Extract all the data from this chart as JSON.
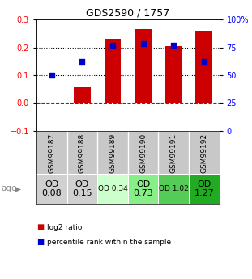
{
  "title": "GDS2590 / 1757",
  "samples": [
    "GSM99187",
    "GSM99188",
    "GSM99189",
    "GSM99190",
    "GSM99191",
    "GSM99192"
  ],
  "log2_ratios": [
    0.0,
    0.055,
    0.23,
    0.265,
    0.205,
    0.26
  ],
  "percentile_ranks_pct": [
    50,
    62,
    77,
    78,
    77,
    62
  ],
  "ylim_left": [
    -0.1,
    0.3
  ],
  "ylim_right": [
    0,
    100
  ],
  "yticks_left": [
    -0.1,
    0.0,
    0.1,
    0.2,
    0.3
  ],
  "yticks_right": [
    0,
    25,
    50,
    75,
    100
  ],
  "ytick_right_labels": [
    "0",
    "25",
    "50",
    "75",
    "100%"
  ],
  "bar_color": "#cc0000",
  "dot_color": "#0000cc",
  "age_values": [
    "OD\n0.08",
    "OD\n0.15",
    "OD 0.34",
    "OD\n0.73",
    "OD 1.02",
    "OD\n1.27"
  ],
  "age_bg_colors": [
    "#d0d0d0",
    "#d0d0d0",
    "#ccffcc",
    "#88ee88",
    "#55cc55",
    "#22aa22"
  ],
  "age_font_sizes": [
    8,
    8,
    6.5,
    8,
    6.5,
    8
  ],
  "sample_bg_color": "#c8c8c8",
  "legend_items": [
    {
      "color": "#cc0000",
      "label": "log2 ratio"
    },
    {
      "color": "#0000cc",
      "label": "percentile rank within the sample"
    }
  ]
}
